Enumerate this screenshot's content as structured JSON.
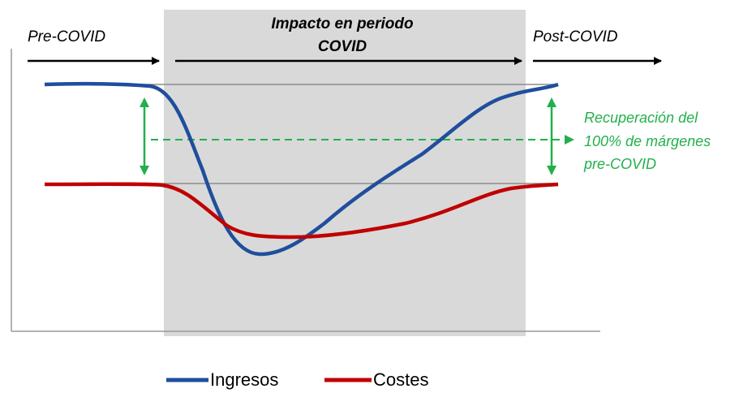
{
  "phases": {
    "pre": "Pre-COVID",
    "impact": [
      "Impacto en periodo",
      "COVID"
    ],
    "post": "Post-COVID"
  },
  "annotation": [
    "Recuperación del",
    "100% de márgenes",
    "pre-COVID"
  ],
  "legend": [
    {
      "label": "Ingresos",
      "color": "#1f4e9c"
    },
    {
      "label": "Costes",
      "color": "#c00000"
    }
  ]
}
